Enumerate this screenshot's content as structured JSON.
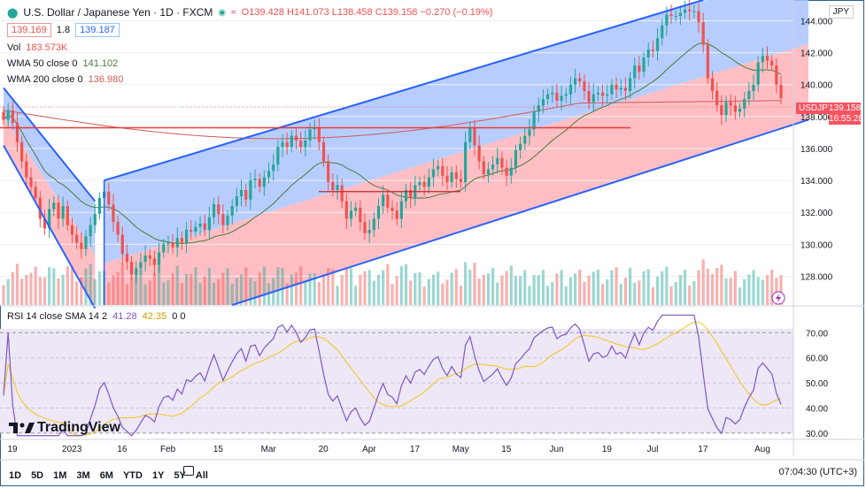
{
  "header": {
    "symbol_title": "U.S. Dollar / Japanese Yen · 1D · FXCM",
    "ohlc": "O139.428 H141.073 L138.458 C139.158 −0.270 (−0.19%)",
    "bid": "139.169",
    "spread": "1.8",
    "ask": "139.187"
  },
  "indicators": {
    "vol_label": "Vol",
    "vol_value": "183.573K",
    "wma50_label": "WMA 50 close 0",
    "wma50_value": "141.102",
    "wma200_label": "WMA 200 close 0",
    "wma200_value": "136.980",
    "rsi_label": "RSI 14 close SMA 14 2",
    "rsi_value": "41.28",
    "rsi_sma_value": "42.35",
    "rsi_extra": "0 0"
  },
  "price_axis": {
    "currency": "JPY",
    "ticks": [
      "144.000",
      "142.000",
      "140.000",
      "138.000",
      "136.000",
      "134.000",
      "132.000",
      "130.000",
      "128.000"
    ],
    "last_price": "139.158",
    "countdown": "16:55:28",
    "symbol": "USDJPY"
  },
  "rsi_axis": {
    "ticks": [
      "70.00",
      "60.00",
      "50.00",
      "40.00",
      "30.00"
    ]
  },
  "time_axis": {
    "ticks": [
      "19",
      "2023",
      "16",
      "Feb",
      "15",
      "Mar",
      "20",
      "Apr",
      "17",
      "May",
      "15",
      "Jun",
      "19",
      "Jul",
      "17",
      "Aug"
    ]
  },
  "toolbar": {
    "ranges": [
      "1D",
      "5D",
      "1M",
      "3M",
      "6M",
      "YTD",
      "1Y",
      "5Y",
      "All"
    ],
    "clock": "07:04:30 (UTC+3)"
  },
  "branding": {
    "logo_text": "TradingView"
  },
  "colors": {
    "bull": "#26a69a",
    "bear": "#ef5350",
    "upper_fill": "#aac4ff",
    "lower_fill": "#ffb3b8",
    "channel": "#2962ff",
    "rsi": "#7e57c2",
    "rsi_sma": "#f5c518",
    "wma50": "#4a7a3a",
    "wma200": "#e06060"
  },
  "chart_data": {
    "type": "candlestick",
    "title": "U.S. Dollar / Japanese Yen · 1D · FXCM",
    "ylim": [
      126.2,
      145.3
    ],
    "rsi_ylim": [
      27.5,
      77.5
    ],
    "close": [
      137.8,
      138.4,
      137.6,
      136.4,
      135.2,
      134.2,
      133.6,
      132.9,
      131.6,
      131.0,
      132.2,
      132.6,
      131.6,
      132.4,
      131.2,
      130.6,
      130.1,
      129.7,
      130.5,
      131.2,
      131.9,
      132.9,
      133.3,
      132.5,
      131.4,
      130.6,
      129.4,
      128.9,
      128.1,
      128.5,
      128.9,
      129.3,
      129.1,
      128.7,
      129.5,
      130.0,
      130.1,
      129.8,
      130.4,
      130.1,
      130.9,
      130.8,
      131.1,
      131.3,
      130.9,
      131.7,
      132.5,
      131.9,
      131.2,
      131.8,
      132.4,
      133.0,
      133.4,
      132.8,
      134.0,
      134.1,
      133.6,
      134.2,
      134.6,
      135.0,
      136.1,
      136.4,
      136.1,
      136.8,
      136.5,
      136.1,
      136.5,
      137.2,
      137.3,
      136.4,
      135.2,
      133.9,
      133.4,
      133.7,
      132.7,
      131.6,
      132.1,
      132.3,
      131.4,
      130.7,
      130.9,
      131.6,
      132.4,
      133.1,
      132.3,
      132.1,
      131.6,
      132.7,
      133.4,
      132.9,
      133.7,
      133.9,
      133.6,
      134.2,
      134.7,
      134.9,
      134.3,
      133.9,
      134.5,
      134.1,
      133.9,
      136.4,
      137.3,
      136.2,
      135.2,
      134.4,
      134.7,
      135.0,
      135.4,
      134.8,
      134.3,
      134.8,
      135.9,
      136.3,
      136.8,
      137.2,
      138.3,
      138.7,
      139.1,
      139.4,
      139.5,
      139.0,
      139.3,
      139.4,
      140.0,
      140.4,
      140.2,
      139.6,
      138.9,
      139.4,
      139.5,
      139.3,
      139.4,
      140.0,
      139.7,
      139.8,
      139.6,
      140.4,
      141.2,
      140.8,
      141.7,
      142.2,
      142.1,
      142.9,
      143.7,
      144.4,
      144.3,
      144.3,
      144.5,
      144.7,
      144.6,
      144.6,
      143.9,
      142.5,
      140.4,
      139.6,
      138.7,
      138.1,
      138.9,
      138.7,
      138.3,
      138.5,
      139.1,
      139.6,
      140.0,
      141.4,
      141.8,
      141.5,
      141.2,
      140.0,
      139.15
    ],
    "volume_note": "volume bars scaled 0-1 of pane height",
    "channels": [
      {
        "name": "left-down channel",
        "points": [
          [
            0,
            139.8
          ],
          [
            20,
            132.7
          ],
          [
            0,
            136.2
          ],
          [
            20,
            126.0
          ]
        ]
      },
      {
        "name": "main up channel",
        "points": [
          [
            22,
            134.0
          ],
          [
            153,
            145.3
          ],
          [
            50,
            126.2
          ],
          [
            176,
            137.8
          ]
        ]
      }
    ],
    "horizontal_levels": [
      137.3,
      133.3
    ]
  }
}
